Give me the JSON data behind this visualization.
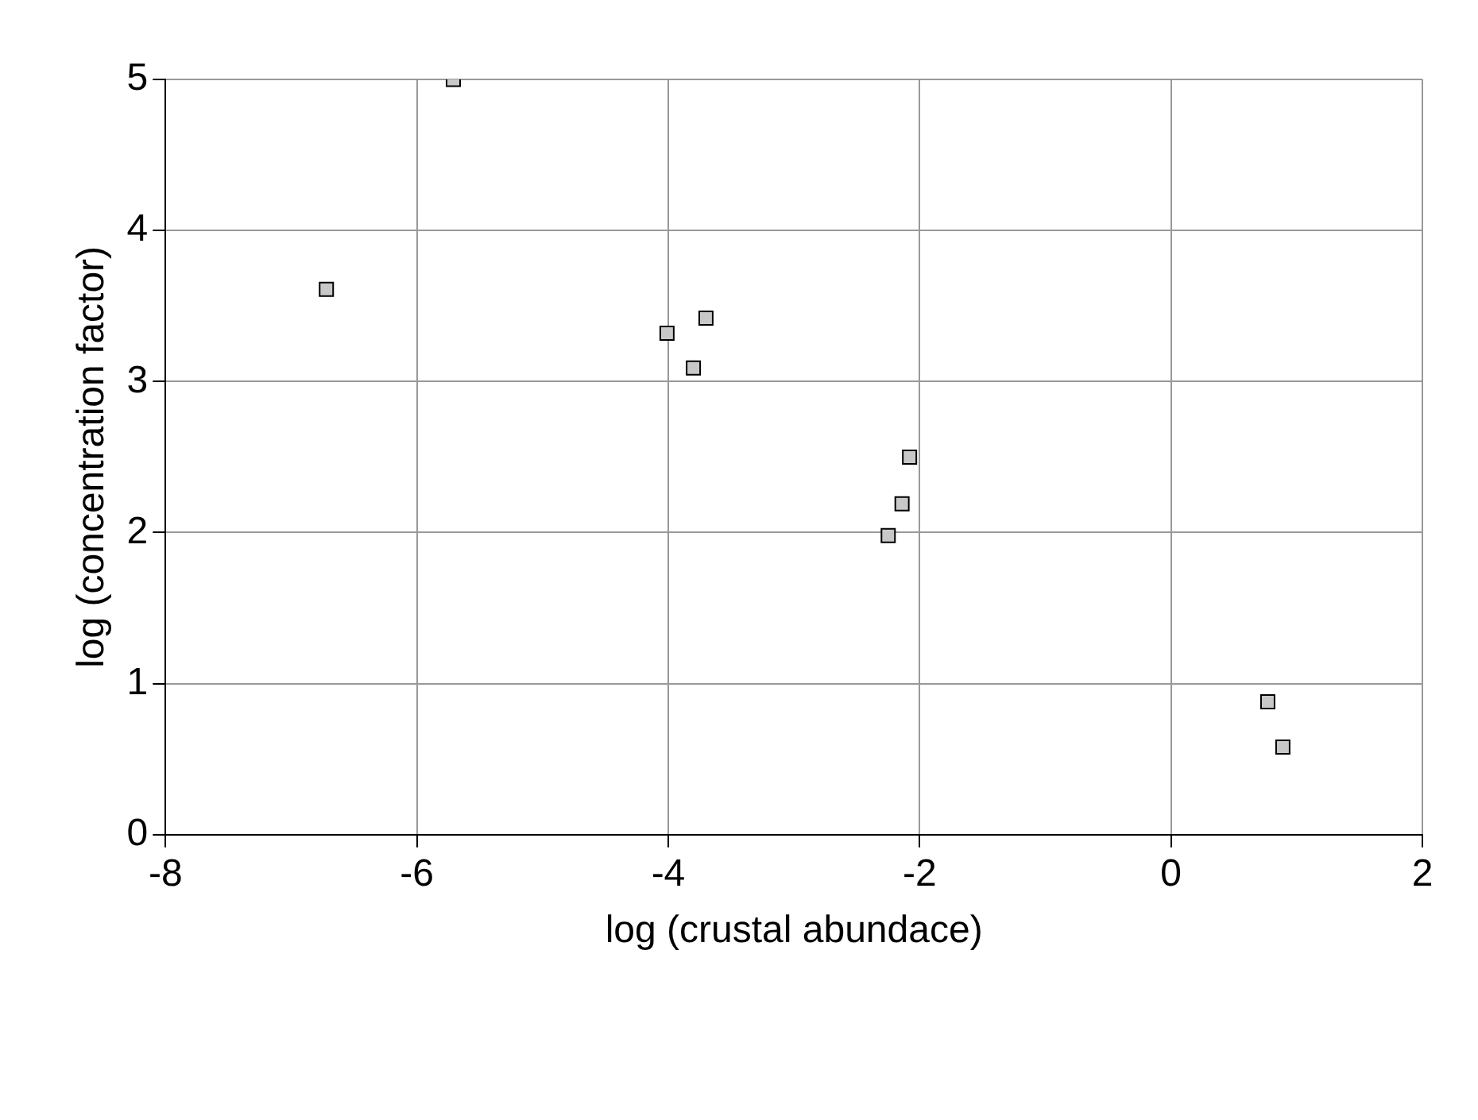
{
  "chart_data": {
    "type": "scatter",
    "xlabel": "log (crustal abundace)",
    "ylabel": "log (concentration factor)",
    "x": [
      -5.71,
      -6.72,
      -4.01,
      -3.7,
      -3.8,
      -2.08,
      -2.14,
      -2.25,
      0.77,
      0.89
    ],
    "values": [
      5.0,
      3.61,
      3.32,
      3.42,
      3.09,
      2.5,
      2.19,
      1.98,
      0.88,
      0.58
    ],
    "color": "#c8c8c8",
    "marker": "square",
    "grid": true,
    "xlim": [
      -8,
      2
    ],
    "xticks": [
      -8,
      -6,
      -4,
      -2,
      0,
      2
    ],
    "ylim": [
      0,
      5
    ],
    "yticks": [
      0,
      1,
      2,
      3,
      4,
      5
    ]
  }
}
